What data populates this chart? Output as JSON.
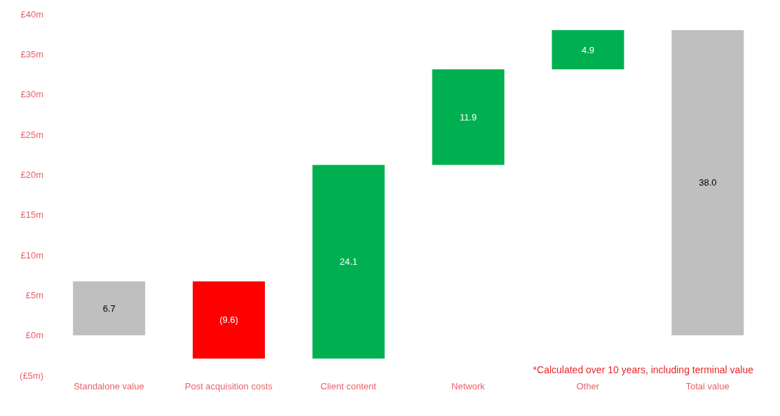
{
  "chart_data": {
    "type": "bar",
    "categories": [
      "Standalone value",
      "Post acquisition costs",
      "Client content",
      "Network",
      "Other",
      "Total value"
    ],
    "values": [
      6.7,
      -9.6,
      24.1,
      11.9,
      4.9,
      38.0
    ],
    "base": [
      0,
      6.7,
      -2.9,
      21.2,
      33.1,
      0
    ],
    "colors": [
      "#bfbfbf",
      "#ff0000",
      "#00b050",
      "#00b050",
      "#00b050",
      "#bfbfbf"
    ],
    "value_labels": [
      "6.7",
      "(9.6)",
      "24.1",
      "11.9",
      "4.9",
      "38.0"
    ],
    "ylim": [
      -5,
      40
    ],
    "yticks": [
      {
        "value": -5,
        "label": "(£5m)"
      },
      {
        "value": 0,
        "label": "£0m"
      },
      {
        "value": 5,
        "label": "£5m"
      },
      {
        "value": 10,
        "label": "£10m"
      },
      {
        "value": 15,
        "label": "£15m"
      },
      {
        "value": 20,
        "label": "£20m"
      },
      {
        "value": 25,
        "label": "£25m"
      },
      {
        "value": 30,
        "label": "£30m"
      },
      {
        "value": 35,
        "label": "£35m"
      },
      {
        "value": 40,
        "label": "£40m"
      }
    ],
    "grid": false,
    "legend": false,
    "annotations": [
      "*Calculated over 10 years, including terminal value"
    ]
  }
}
